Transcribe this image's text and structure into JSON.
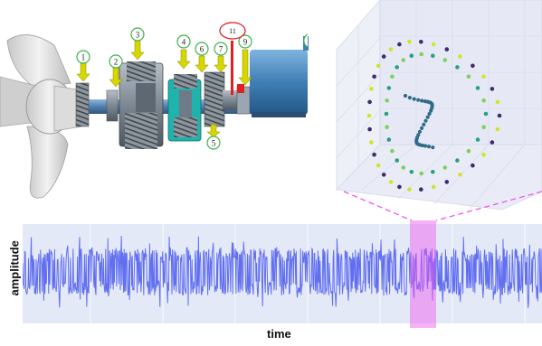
{
  "drivetrain": {
    "callouts": [
      "1",
      "2",
      "3",
      "4",
      "5",
      "6",
      "7",
      "9"
    ],
    "highlight_callout": "11",
    "colors": {
      "shaft": "#5b8bb8",
      "gear": "#7f8c99",
      "teal": "#1fb3ad",
      "generator": "#3f7fb5",
      "callout_ring": "#3cb34a",
      "arrow": "#d6d600",
      "highlight": "#e02020"
    }
  },
  "scatter3d": {
    "colors": [
      "#3b2d6b",
      "#2f6b8a",
      "#2aa081",
      "#7fd15b",
      "#d3e22c"
    ]
  },
  "signal": {
    "ylabel": "amplitude",
    "xlabel": "time",
    "wave_color": "#6270f0",
    "background": "#e4e9f7",
    "highlight_color": "#ee55ee"
  }
}
